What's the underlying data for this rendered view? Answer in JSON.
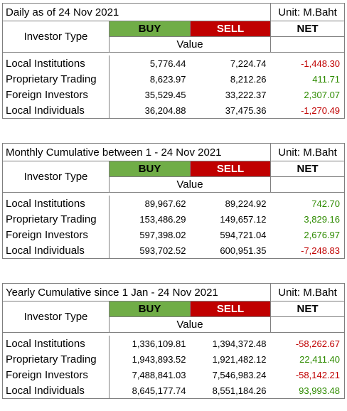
{
  "headers": {
    "investor_type": "Investor Type",
    "buy": "BUY",
    "sell": "SELL",
    "net": "NET",
    "value": "Value",
    "unit": "Unit: M.Baht"
  },
  "tables": [
    {
      "title": "Daily as of 24 Nov 2021",
      "rows": [
        {
          "name": "Local Institutions",
          "buy": "5,776.44",
          "sell": "7,224.74",
          "net": "-1,448.30",
          "sign": "neg"
        },
        {
          "name": "Proprietary Trading",
          "buy": "8,623.97",
          "sell": "8,212.26",
          "net": "411.71",
          "sign": "pos"
        },
        {
          "name": "Foreign Investors",
          "buy": "35,529.45",
          "sell": "33,222.37",
          "net": "2,307.07",
          "sign": "pos"
        },
        {
          "name": "Local Individuals",
          "buy": "36,204.88",
          "sell": "37,475.36",
          "net": "-1,270.49",
          "sign": "neg"
        }
      ]
    },
    {
      "title": "Monthly Cumulative between 1 - 24 Nov 2021",
      "rows": [
        {
          "name": "Local Institutions",
          "buy": "89,967.62",
          "sell": "89,224.92",
          "net": "742.70",
          "sign": "pos"
        },
        {
          "name": "Proprietary Trading",
          "buy": "153,486.29",
          "sell": "149,657.12",
          "net": "3,829.16",
          "sign": "pos"
        },
        {
          "name": "Foreign Investors",
          "buy": "597,398.02",
          "sell": "594,721.04",
          "net": "2,676.97",
          "sign": "pos"
        },
        {
          "name": "Local Individuals",
          "buy": "593,702.52",
          "sell": "600,951.35",
          "net": "-7,248.83",
          "sign": "neg"
        }
      ]
    },
    {
      "title": "Yearly Cumulative since 1 Jan - 24 Nov 2021",
      "rows": [
        {
          "name": "Local Institutions",
          "buy": "1,336,109.81",
          "sell": "1,394,372.48",
          "net": "-58,262.67",
          "sign": "neg"
        },
        {
          "name": "Proprietary Trading",
          "buy": "1,943,893.52",
          "sell": "1,921,482.12",
          "net": "22,411.40",
          "sign": "pos"
        },
        {
          "name": "Foreign Investors",
          "buy": "7,488,841.03",
          "sell": "7,546,983.24",
          "net": "-58,142.21",
          "sign": "neg"
        },
        {
          "name": "Local Individuals",
          "buy": "8,645,177.74",
          "sell": "8,551,184.26",
          "net": "93,993.48",
          "sign": "pos"
        }
      ]
    }
  ]
}
